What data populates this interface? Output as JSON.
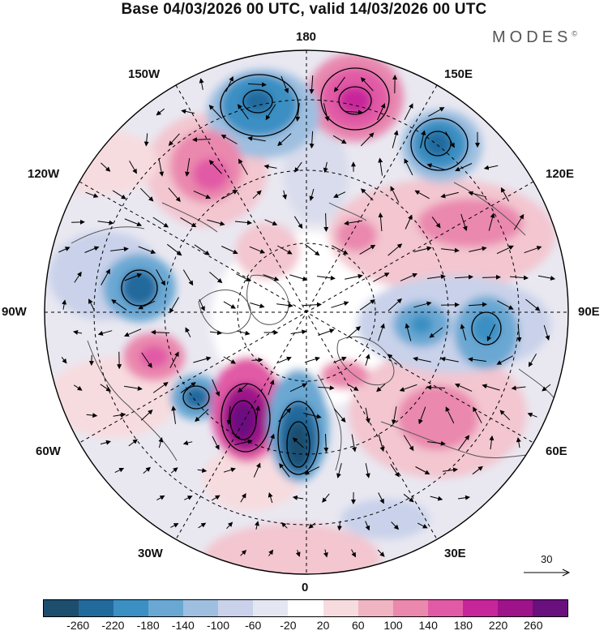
{
  "title": "Base 04/03/2026 00 UTC, valid 14/03/2026 00 UTC",
  "brand": "MODES",
  "brand_mark": "©",
  "longitude_labels": {
    "lon_180": "180",
    "lon_150e": "150E",
    "lon_120e": "120E",
    "lon_90e": "90E",
    "lon_60e": "60E",
    "lon_30e": "30E",
    "lon_0": "0",
    "lon_30w": "30W",
    "lon_60w": "60W",
    "lon_90w": "90W",
    "lon_120w": "120W",
    "lon_150w": "150W"
  },
  "reference_vector": "30",
  "colorbar": {
    "colors": [
      "#1d4e6e",
      "#22699c",
      "#3b8fc3",
      "#6aa8d3",
      "#9fbfe0",
      "#c9d2ea",
      "#e4e6f1",
      "#ffffff",
      "#f7dcdf",
      "#f0b4c2",
      "#ea88ae",
      "#e15aa5",
      "#c7259a",
      "#9e1389",
      "#6a0f7e"
    ],
    "tick_labels": [
      "-260",
      "-220",
      "-180",
      "-140",
      "-100",
      "-60",
      "-20",
      "20",
      "60",
      "100",
      "140",
      "180",
      "220",
      "260"
    ]
  },
  "colors": {
    "land_outline": "#555555",
    "contour": "#000000"
  },
  "map_features": [
    {
      "name": "anomaly-high-bering",
      "kind": "high",
      "value": 220
    },
    {
      "name": "anomaly-low-aleutian",
      "kind": "low",
      "value": -180
    },
    {
      "name": "anomaly-low-kamchatka",
      "kind": "low",
      "value": -200
    },
    {
      "name": "anomaly-high-alaska",
      "kind": "high",
      "value": 140
    },
    {
      "name": "anomaly-low-hudson",
      "kind": "low",
      "value": -200
    },
    {
      "name": "anomaly-high-east-us",
      "kind": "high",
      "value": 160
    },
    {
      "name": "anomaly-low-atlantic",
      "kind": "low",
      "value": -180
    },
    {
      "name": "anomaly-high-greenland-sea",
      "kind": "high",
      "value": 260
    },
    {
      "name": "anomaly-low-norwegian-sea",
      "kind": "low",
      "value": -260
    },
    {
      "name": "anomaly-low-central-asia",
      "kind": "low",
      "value": -160
    },
    {
      "name": "anomaly-high-siberia",
      "kind": "high",
      "value": 120
    },
    {
      "name": "anomaly-high-ural",
      "kind": "high",
      "value": 120
    }
  ]
}
